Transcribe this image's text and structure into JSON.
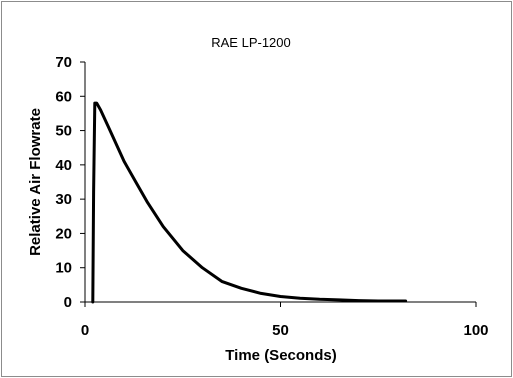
{
  "chart_data": {
    "type": "line",
    "title": "RAE LP-1200",
    "xlabel": "Time (Seconds)",
    "ylabel": "Relative Air Flowrate",
    "xlim": [
      0,
      100
    ],
    "ylim": [
      0,
      70
    ],
    "x_ticks": [
      "0",
      "50",
      "100"
    ],
    "y_ticks": [
      "0",
      "10",
      "20",
      "30",
      "40",
      "50",
      "60",
      "70"
    ],
    "grid": false,
    "legend": "none",
    "line_color": "#000000",
    "series": [
      {
        "x": [
          2,
          2.2,
          2.5,
          3,
          4,
          6,
          8,
          10,
          13,
          16,
          20,
          25,
          30,
          35,
          40,
          45,
          50,
          55,
          60,
          65,
          70,
          75,
          82
        ],
        "y": [
          0,
          32,
          58,
          58,
          56,
          51,
          46,
          41,
          35,
          29,
          22,
          15,
          10,
          6,
          4,
          2.5,
          1.6,
          1.1,
          0.8,
          0.6,
          0.4,
          0.3,
          0.3
        ]
      }
    ]
  }
}
